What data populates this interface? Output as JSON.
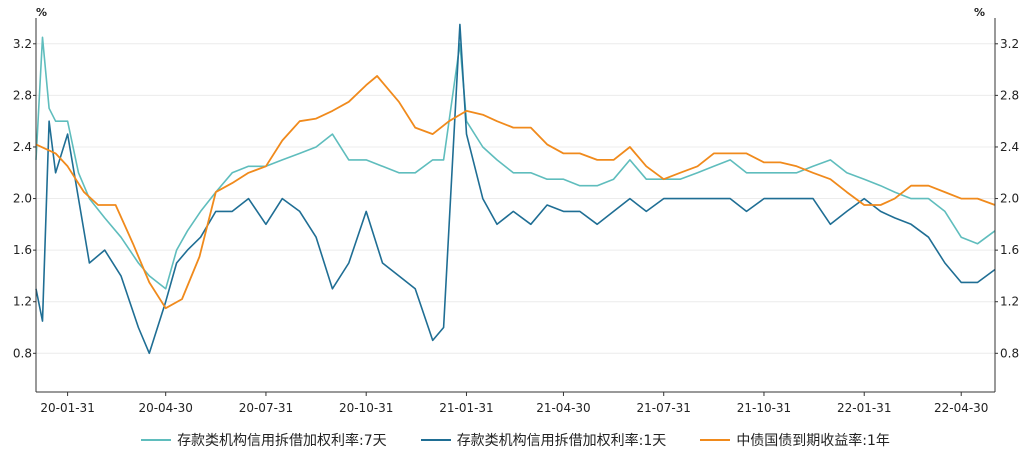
{
  "chart_data": {
    "type": "line",
    "title": "",
    "left_unit": "%",
    "right_unit": "%",
    "ylim": [
      0.5,
      3.4
    ],
    "y_ticks": [
      0.8,
      1.2,
      1.6,
      2.0,
      2.4,
      2.8,
      3.2
    ],
    "y_tick_labels": [
      "0.8",
      "1.2",
      "1.6",
      "2.0",
      "2.4",
      "2.8",
      "3.2"
    ],
    "x_tick_labels": [
      "20-01-31",
      "20-04-30",
      "20-07-31",
      "20-10-31",
      "21-01-31",
      "21-04-30",
      "21-07-31",
      "21-10-31",
      "22-01-31",
      "22-04-30"
    ],
    "x_start_label": "20-01-02",
    "x_end_label": "22-05-31",
    "legend_position": "bottom",
    "grid": true,
    "series": [
      {
        "name": "存款类机构信用拆借加权利率:7天",
        "color": "#5fbdbd",
        "points": [
          [
            "20-01-02",
            2.3
          ],
          [
            "20-01-08",
            3.25
          ],
          [
            "20-01-14",
            2.7
          ],
          [
            "20-01-20",
            2.6
          ],
          [
            "20-01-31",
            2.6
          ],
          [
            "20-02-10",
            2.2
          ],
          [
            "20-02-20",
            2.0
          ],
          [
            "20-03-05",
            1.85
          ],
          [
            "20-03-20",
            1.7
          ],
          [
            "20-04-05",
            1.5
          ],
          [
            "20-04-15",
            1.4
          ],
          [
            "20-04-30",
            1.3
          ],
          [
            "20-05-10",
            1.6
          ],
          [
            "20-05-20",
            1.75
          ],
          [
            "20-06-01",
            1.9
          ],
          [
            "20-06-15",
            2.05
          ],
          [
            "20-06-30",
            2.2
          ],
          [
            "20-07-15",
            2.25
          ],
          [
            "20-07-31",
            2.25
          ],
          [
            "20-08-15",
            2.3
          ],
          [
            "20-08-31",
            2.35
          ],
          [
            "20-09-15",
            2.4
          ],
          [
            "20-09-30",
            2.5
          ],
          [
            "20-10-15",
            2.3
          ],
          [
            "20-10-31",
            2.3
          ],
          [
            "20-11-15",
            2.25
          ],
          [
            "20-11-30",
            2.2
          ],
          [
            "20-12-15",
            2.2
          ],
          [
            "20-12-31",
            2.3
          ],
          [
            "21-01-10",
            2.3
          ],
          [
            "21-01-25",
            3.2
          ],
          [
            "21-01-31",
            2.6
          ],
          [
            "21-02-15",
            2.4
          ],
          [
            "21-02-28",
            2.3
          ],
          [
            "21-03-15",
            2.2
          ],
          [
            "21-03-31",
            2.2
          ],
          [
            "21-04-15",
            2.15
          ],
          [
            "21-04-30",
            2.15
          ],
          [
            "21-05-15",
            2.1
          ],
          [
            "21-05-31",
            2.1
          ],
          [
            "21-06-15",
            2.15
          ],
          [
            "21-06-30",
            2.3
          ],
          [
            "21-07-15",
            2.15
          ],
          [
            "21-07-31",
            2.15
          ],
          [
            "21-08-15",
            2.15
          ],
          [
            "21-08-31",
            2.2
          ],
          [
            "21-09-15",
            2.25
          ],
          [
            "21-09-30",
            2.3
          ],
          [
            "21-10-15",
            2.2
          ],
          [
            "21-10-31",
            2.2
          ],
          [
            "21-11-15",
            2.2
          ],
          [
            "21-11-30",
            2.2
          ],
          [
            "21-12-15",
            2.25
          ],
          [
            "21-12-31",
            2.3
          ],
          [
            "22-01-15",
            2.2
          ],
          [
            "22-01-31",
            2.15
          ],
          [
            "22-02-15",
            2.1
          ],
          [
            "22-02-28",
            2.05
          ],
          [
            "22-03-15",
            2.0
          ],
          [
            "22-03-31",
            2.0
          ],
          [
            "22-04-15",
            1.9
          ],
          [
            "22-04-30",
            1.7
          ],
          [
            "22-05-15",
            1.65
          ],
          [
            "22-05-31",
            1.75
          ]
        ]
      },
      {
        "name": "存款类机构信用拆借加权利率:1天",
        "color": "#1f6e94",
        "points": [
          [
            "20-01-02",
            1.3
          ],
          [
            "20-01-08",
            1.05
          ],
          [
            "20-01-14",
            2.6
          ],
          [
            "20-01-20",
            2.2
          ],
          [
            "20-01-31",
            2.5
          ],
          [
            "20-02-10",
            2.0
          ],
          [
            "20-02-20",
            1.5
          ],
          [
            "20-03-05",
            1.6
          ],
          [
            "20-03-20",
            1.4
          ],
          [
            "20-04-05",
            1.0
          ],
          [
            "20-04-15",
            0.8
          ],
          [
            "20-04-30",
            1.2
          ],
          [
            "20-05-10",
            1.5
          ],
          [
            "20-05-20",
            1.6
          ],
          [
            "20-06-01",
            1.7
          ],
          [
            "20-06-15",
            1.9
          ],
          [
            "20-06-30",
            1.9
          ],
          [
            "20-07-15",
            2.0
          ],
          [
            "20-07-31",
            1.8
          ],
          [
            "20-08-15",
            2.0
          ],
          [
            "20-08-31",
            1.9
          ],
          [
            "20-09-15",
            1.7
          ],
          [
            "20-09-30",
            1.3
          ],
          [
            "20-10-15",
            1.5
          ],
          [
            "20-10-31",
            1.9
          ],
          [
            "20-11-15",
            1.5
          ],
          [
            "20-11-30",
            1.4
          ],
          [
            "20-12-15",
            1.3
          ],
          [
            "20-12-31",
            0.9
          ],
          [
            "21-01-10",
            1.0
          ],
          [
            "21-01-25",
            3.35
          ],
          [
            "21-01-31",
            2.5
          ],
          [
            "21-02-15",
            2.0
          ],
          [
            "21-02-28",
            1.8
          ],
          [
            "21-03-15",
            1.9
          ],
          [
            "21-03-31",
            1.8
          ],
          [
            "21-04-15",
            1.95
          ],
          [
            "21-04-30",
            1.9
          ],
          [
            "21-05-15",
            1.9
          ],
          [
            "21-05-31",
            1.8
          ],
          [
            "21-06-15",
            1.9
          ],
          [
            "21-06-30",
            2.0
          ],
          [
            "21-07-15",
            1.9
          ],
          [
            "21-07-31",
            2.0
          ],
          [
            "21-08-15",
            2.0
          ],
          [
            "21-08-31",
            2.0
          ],
          [
            "21-09-15",
            2.0
          ],
          [
            "21-09-30",
            2.0
          ],
          [
            "21-10-15",
            1.9
          ],
          [
            "21-10-31",
            2.0
          ],
          [
            "21-11-15",
            2.0
          ],
          [
            "21-11-30",
            2.0
          ],
          [
            "21-12-15",
            2.0
          ],
          [
            "21-12-31",
            1.8
          ],
          [
            "22-01-15",
            1.9
          ],
          [
            "22-01-31",
            2.0
          ],
          [
            "22-02-15",
            1.9
          ],
          [
            "22-02-28",
            1.85
          ],
          [
            "22-03-15",
            1.8
          ],
          [
            "22-03-31",
            1.7
          ],
          [
            "22-04-15",
            1.5
          ],
          [
            "22-04-30",
            1.35
          ],
          [
            "22-05-15",
            1.35
          ],
          [
            "22-05-31",
            1.45
          ]
        ]
      },
      {
        "name": "中债国债到期收益率:1年",
        "color": "#f08a1c",
        "points": [
          [
            "20-01-02",
            2.42
          ],
          [
            "20-01-20",
            2.35
          ],
          [
            "20-01-31",
            2.25
          ],
          [
            "20-02-15",
            2.05
          ],
          [
            "20-02-28",
            1.95
          ],
          [
            "20-03-15",
            1.95
          ],
          [
            "20-03-31",
            1.65
          ],
          [
            "20-04-15",
            1.35
          ],
          [
            "20-04-30",
            1.15
          ],
          [
            "20-05-15",
            1.22
          ],
          [
            "20-05-31",
            1.55
          ],
          [
            "20-06-15",
            2.05
          ],
          [
            "20-06-30",
            2.12
          ],
          [
            "20-07-15",
            2.2
          ],
          [
            "20-07-31",
            2.25
          ],
          [
            "20-08-15",
            2.45
          ],
          [
            "20-08-31",
            2.6
          ],
          [
            "20-09-15",
            2.62
          ],
          [
            "20-09-30",
            2.68
          ],
          [
            "20-10-15",
            2.75
          ],
          [
            "20-10-31",
            2.88
          ],
          [
            "20-11-10",
            2.95
          ],
          [
            "20-11-20",
            2.85
          ],
          [
            "20-11-30",
            2.75
          ],
          [
            "20-12-15",
            2.55
          ],
          [
            "20-12-31",
            2.5
          ],
          [
            "21-01-15",
            2.6
          ],
          [
            "21-01-31",
            2.68
          ],
          [
            "21-02-15",
            2.65
          ],
          [
            "21-02-28",
            2.6
          ],
          [
            "21-03-15",
            2.55
          ],
          [
            "21-03-31",
            2.55
          ],
          [
            "21-04-15",
            2.42
          ],
          [
            "21-04-30",
            2.35
          ],
          [
            "21-05-15",
            2.35
          ],
          [
            "21-05-31",
            2.3
          ],
          [
            "21-06-15",
            2.3
          ],
          [
            "21-06-30",
            2.4
          ],
          [
            "21-07-15",
            2.25
          ],
          [
            "21-07-31",
            2.15
          ],
          [
            "21-08-15",
            2.2
          ],
          [
            "21-08-31",
            2.25
          ],
          [
            "21-09-15",
            2.35
          ],
          [
            "21-09-30",
            2.35
          ],
          [
            "21-10-15",
            2.35
          ],
          [
            "21-10-31",
            2.28
          ],
          [
            "21-11-15",
            2.28
          ],
          [
            "21-11-30",
            2.25
          ],
          [
            "21-12-15",
            2.2
          ],
          [
            "21-12-31",
            2.15
          ],
          [
            "22-01-15",
            2.05
          ],
          [
            "22-01-31",
            1.95
          ],
          [
            "22-02-15",
            1.95
          ],
          [
            "22-02-28",
            2.0
          ],
          [
            "22-03-15",
            2.1
          ],
          [
            "22-03-31",
            2.1
          ],
          [
            "22-04-15",
            2.05
          ],
          [
            "22-04-30",
            2.0
          ],
          [
            "22-05-15",
            2.0
          ],
          [
            "22-05-31",
            1.95
          ]
        ]
      }
    ]
  }
}
